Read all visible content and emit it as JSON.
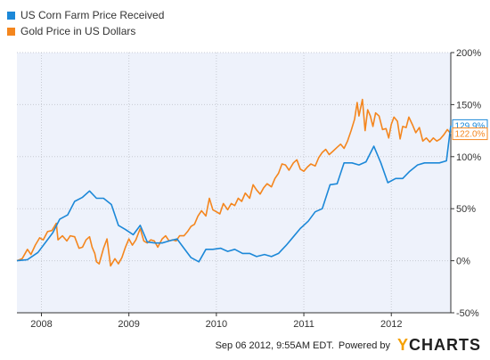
{
  "colors": {
    "plot_background": "#eef2fb",
    "grid": "#c8cbd3",
    "axis": "#333333",
    "corn": "#1c88d8",
    "gold": "#f4861e"
  },
  "legend": [
    {
      "label": "US Corn Farm Price Received",
      "color": "#1c88d8"
    },
    {
      "label": "Gold Price in US Dollars",
      "color": "#f4861e"
    }
  ],
  "footer": {
    "timestamp": "Sep 06 2012, 9:55AM EDT.",
    "powered_by": "Powered by",
    "brand_mark": "Y",
    "brand_rest": "CHARTS"
  },
  "chart_data": {
    "type": "line",
    "title": "",
    "xlabel": "",
    "ylabel": "",
    "x_range": [
      2007.72,
      2012.68
    ],
    "y_range": [
      -50,
      200
    ],
    "x_ticks": [
      {
        "value": 2008,
        "label": "2008"
      },
      {
        "value": 2009,
        "label": "2009"
      },
      {
        "value": 2010,
        "label": "2010"
      },
      {
        "value": 2011,
        "label": "2011"
      },
      {
        "value": 2012,
        "label": "2012"
      }
    ],
    "y_ticks": [
      {
        "value": 200,
        "label": "200%"
      },
      {
        "value": 150,
        "label": "150%"
      },
      {
        "value": 100,
        "label": "100%"
      },
      {
        "value": 50,
        "label": "50%"
      },
      {
        "value": 0,
        "label": "0%"
      },
      {
        "value": -50,
        "label": "-50%"
      }
    ],
    "grid": true,
    "series": [
      {
        "name": "US Corn Farm Price Received",
        "color": "#1c88d8",
        "end_label": "129.9%",
        "points": [
          [
            2007.72,
            0
          ],
          [
            2007.84,
            1
          ],
          [
            2007.96,
            8
          ],
          [
            2008.05,
            18
          ],
          [
            2008.13,
            27
          ],
          [
            2008.21,
            40
          ],
          [
            2008.3,
            44
          ],
          [
            2008.38,
            57
          ],
          [
            2008.47,
            61
          ],
          [
            2008.55,
            67
          ],
          [
            2008.63,
            60
          ],
          [
            2008.71,
            60
          ],
          [
            2008.8,
            54
          ],
          [
            2008.88,
            34
          ],
          [
            2008.96,
            30
          ],
          [
            2009.05,
            25
          ],
          [
            2009.13,
            34
          ],
          [
            2009.21,
            18
          ],
          [
            2009.3,
            17
          ],
          [
            2009.38,
            17
          ],
          [
            2009.46,
            19
          ],
          [
            2009.55,
            21
          ],
          [
            2009.63,
            12
          ],
          [
            2009.71,
            3
          ],
          [
            2009.8,
            -1
          ],
          [
            2009.88,
            11
          ],
          [
            2009.96,
            11
          ],
          [
            2010.05,
            12
          ],
          [
            2010.13,
            9
          ],
          [
            2010.21,
            11
          ],
          [
            2010.3,
            7
          ],
          [
            2010.38,
            7
          ],
          [
            2010.46,
            4
          ],
          [
            2010.55,
            6
          ],
          [
            2010.63,
            4
          ],
          [
            2010.71,
            7
          ],
          [
            2010.8,
            15
          ],
          [
            2010.88,
            23
          ],
          [
            2010.96,
            31
          ],
          [
            2011.05,
            38
          ],
          [
            2011.13,
            47
          ],
          [
            2011.21,
            50
          ],
          [
            2011.3,
            73
          ],
          [
            2011.38,
            74
          ],
          [
            2011.46,
            94
          ],
          [
            2011.55,
            94
          ],
          [
            2011.63,
            92
          ],
          [
            2011.71,
            95
          ],
          [
            2011.8,
            110
          ],
          [
            2011.88,
            94
          ],
          [
            2011.96,
            75
          ],
          [
            2012.05,
            79
          ],
          [
            2012.13,
            79
          ],
          [
            2012.21,
            86
          ],
          [
            2012.3,
            92
          ],
          [
            2012.38,
            94
          ],
          [
            2012.46,
            94
          ],
          [
            2012.55,
            94
          ],
          [
            2012.63,
            96
          ],
          [
            2012.68,
            129.9
          ]
        ]
      },
      {
        "name": "Gold Price in US Dollars",
        "color": "#f4861e",
        "end_label": "122.0%",
        "points": [
          [
            2007.72,
            0
          ],
          [
            2007.78,
            2
          ],
          [
            2007.84,
            11
          ],
          [
            2007.88,
            6
          ],
          [
            2007.93,
            15
          ],
          [
            2007.98,
            22
          ],
          [
            2008.02,
            20
          ],
          [
            2008.07,
            28
          ],
          [
            2008.12,
            29
          ],
          [
            2008.17,
            36
          ],
          [
            2008.19,
            20
          ],
          [
            2008.24,
            24
          ],
          [
            2008.29,
            19
          ],
          [
            2008.33,
            24
          ],
          [
            2008.38,
            23
          ],
          [
            2008.43,
            12
          ],
          [
            2008.47,
            13
          ],
          [
            2008.51,
            20
          ],
          [
            2008.55,
            23
          ],
          [
            2008.58,
            13
          ],
          [
            2008.61,
            7
          ],
          [
            2008.63,
            -1
          ],
          [
            2008.66,
            -3
          ],
          [
            2008.71,
            12
          ],
          [
            2008.75,
            21
          ],
          [
            2008.79,
            -5
          ],
          [
            2008.84,
            2
          ],
          [
            2008.88,
            -3
          ],
          [
            2008.92,
            3
          ],
          [
            2008.96,
            13
          ],
          [
            2009.0,
            21
          ],
          [
            2009.04,
            15
          ],
          [
            2009.08,
            20
          ],
          [
            2009.13,
            31
          ],
          [
            2009.17,
            19
          ],
          [
            2009.21,
            17
          ],
          [
            2009.25,
            20
          ],
          [
            2009.29,
            19
          ],
          [
            2009.33,
            13
          ],
          [
            2009.38,
            21
          ],
          [
            2009.42,
            24
          ],
          [
            2009.46,
            19
          ],
          [
            2009.5,
            20
          ],
          [
            2009.54,
            19
          ],
          [
            2009.58,
            24
          ],
          [
            2009.63,
            24
          ],
          [
            2009.67,
            28
          ],
          [
            2009.71,
            33
          ],
          [
            2009.75,
            35
          ],
          [
            2009.79,
            43
          ],
          [
            2009.83,
            48
          ],
          [
            2009.88,
            43
          ],
          [
            2009.92,
            60
          ],
          [
            2009.96,
            49
          ],
          [
            2010.0,
            47
          ],
          [
            2010.04,
            45
          ],
          [
            2010.08,
            55
          ],
          [
            2010.13,
            49
          ],
          [
            2010.17,
            55
          ],
          [
            2010.21,
            53
          ],
          [
            2010.25,
            60
          ],
          [
            2010.29,
            57
          ],
          [
            2010.33,
            65
          ],
          [
            2010.38,
            60
          ],
          [
            2010.42,
            73
          ],
          [
            2010.46,
            68
          ],
          [
            2010.5,
            64
          ],
          [
            2010.54,
            70
          ],
          [
            2010.58,
            74
          ],
          [
            2010.63,
            71
          ],
          [
            2010.67,
            79
          ],
          [
            2010.71,
            84
          ],
          [
            2010.75,
            93
          ],
          [
            2010.79,
            92
          ],
          [
            2010.83,
            87
          ],
          [
            2010.88,
            94
          ],
          [
            2010.92,
            97
          ],
          [
            2010.96,
            88
          ],
          [
            2011.0,
            86
          ],
          [
            2011.04,
            90
          ],
          [
            2011.08,
            93
          ],
          [
            2011.13,
            91
          ],
          [
            2011.17,
            99
          ],
          [
            2011.21,
            104
          ],
          [
            2011.25,
            107
          ],
          [
            2011.29,
            102
          ],
          [
            2011.33,
            105
          ],
          [
            2011.38,
            109
          ],
          [
            2011.42,
            112
          ],
          [
            2011.46,
            108
          ],
          [
            2011.5,
            115
          ],
          [
            2011.54,
            125
          ],
          [
            2011.58,
            136
          ],
          [
            2011.61,
            152
          ],
          [
            2011.63,
            139
          ],
          [
            2011.67,
            155
          ],
          [
            2011.7,
            125
          ],
          [
            2011.73,
            145
          ],
          [
            2011.76,
            139
          ],
          [
            2011.79,
            129
          ],
          [
            2011.82,
            142
          ],
          [
            2011.86,
            139
          ],
          [
            2011.9,
            126
          ],
          [
            2011.94,
            127
          ],
          [
            2011.97,
            118
          ],
          [
            2012.0,
            131
          ],
          [
            2012.03,
            138
          ],
          [
            2012.07,
            134
          ],
          [
            2012.1,
            117
          ],
          [
            2012.13,
            129
          ],
          [
            2012.17,
            128
          ],
          [
            2012.2,
            138
          ],
          [
            2012.24,
            131
          ],
          [
            2012.28,
            123
          ],
          [
            2012.32,
            128
          ],
          [
            2012.36,
            115
          ],
          [
            2012.4,
            118
          ],
          [
            2012.44,
            114
          ],
          [
            2012.48,
            118
          ],
          [
            2012.52,
            115
          ],
          [
            2012.56,
            117
          ],
          [
            2012.6,
            121
          ],
          [
            2012.64,
            126
          ],
          [
            2012.68,
            122.0
          ]
        ]
      }
    ]
  }
}
